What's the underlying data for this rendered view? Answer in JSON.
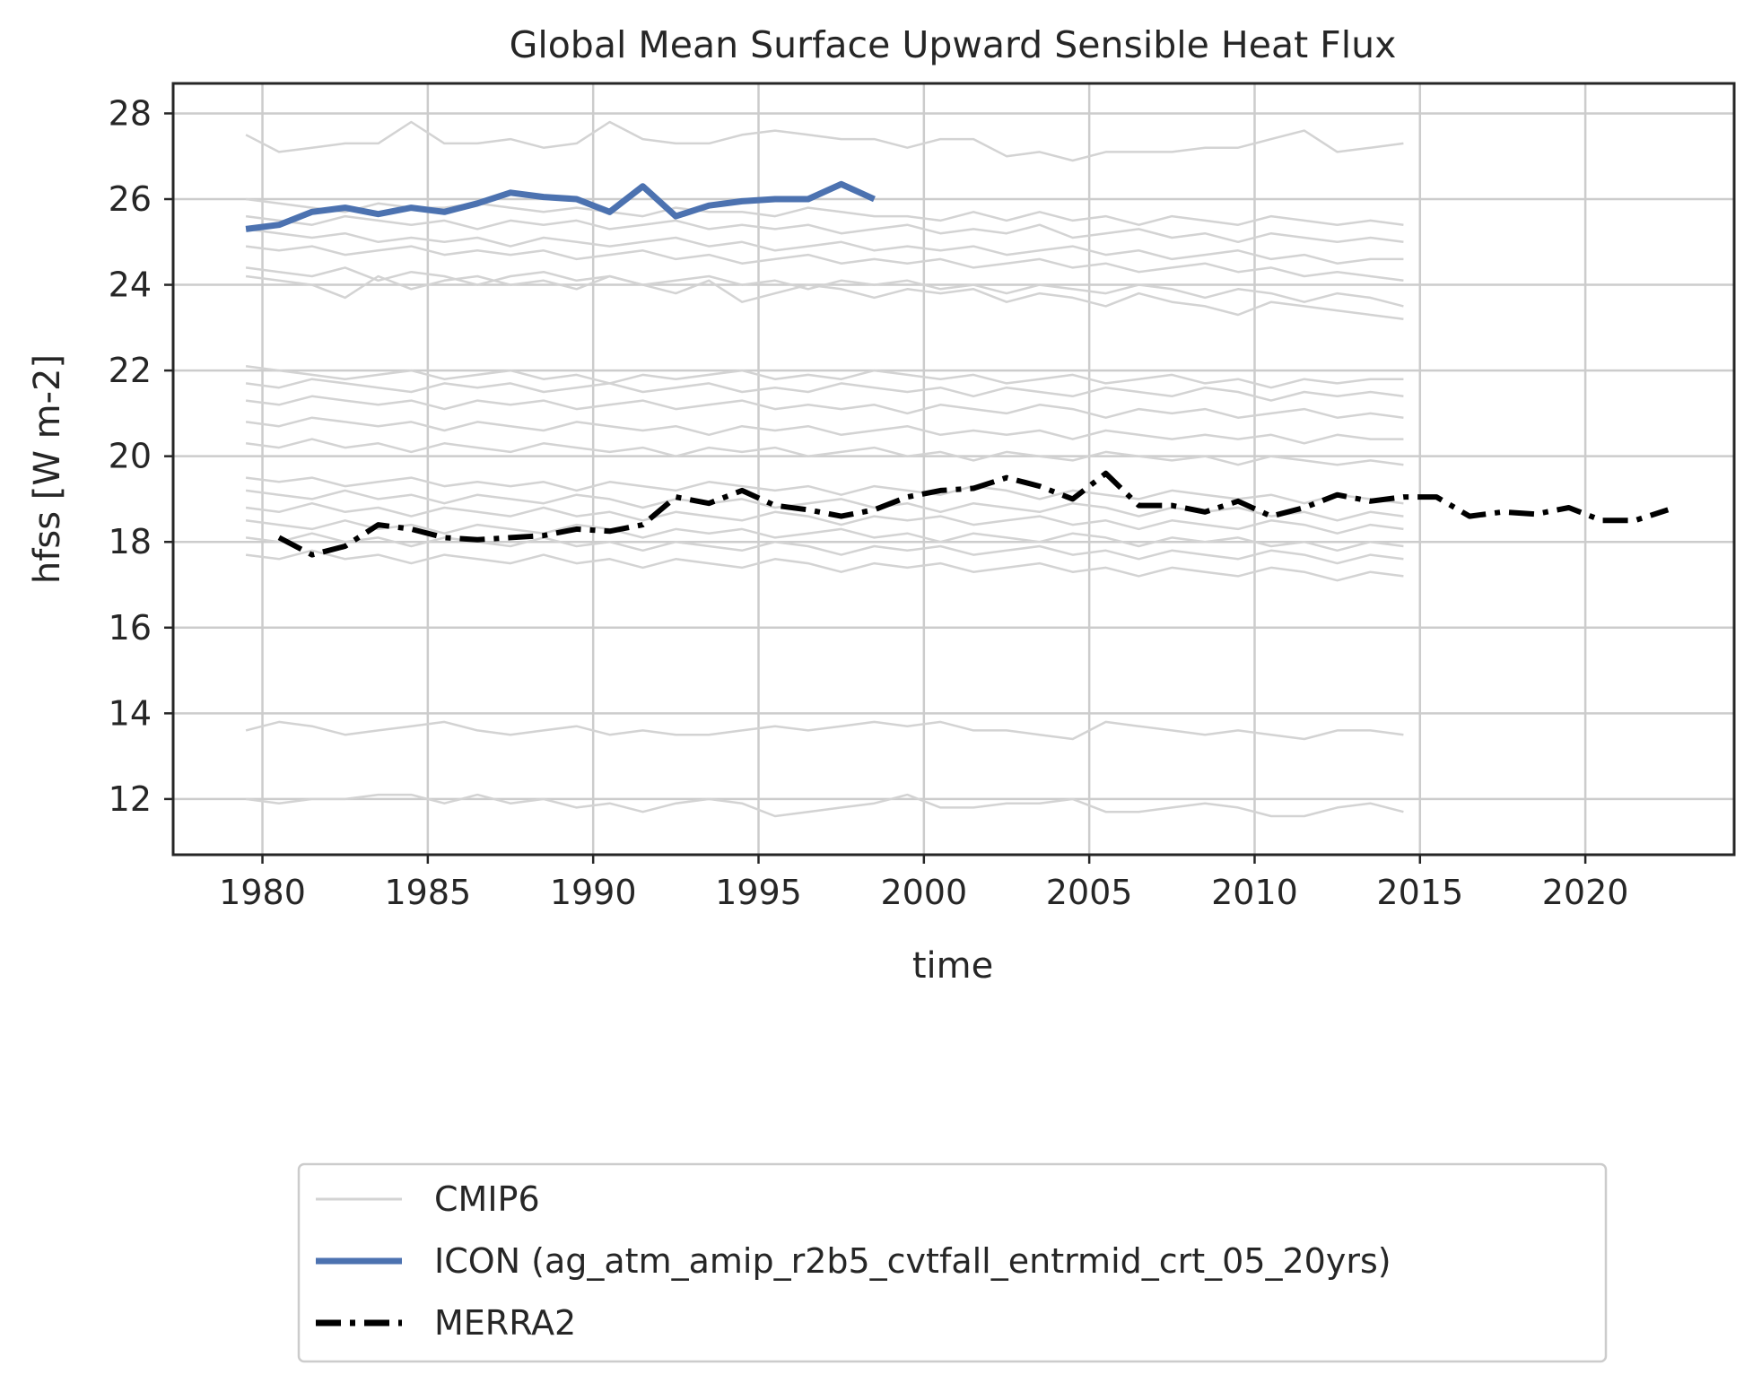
{
  "chart_data": {
    "type": "line",
    "title": "Global Mean Surface Upward Sensible Heat Flux",
    "xlabel": "time",
    "ylabel": "hfss [W m-2]",
    "xlim": [
      1977.3,
      2024.5
    ],
    "ylim": [
      10.7,
      28.7
    ],
    "xticks": [
      1980,
      1985,
      1990,
      1995,
      2000,
      2005,
      2010,
      2015,
      2020
    ],
    "yticks": [
      12,
      14,
      16,
      18,
      20,
      22,
      24,
      26,
      28
    ],
    "grid": true,
    "legend_position": "below plot",
    "series": [
      {
        "name": "CMIP6",
        "color": "#d3d3d3",
        "style": "solid",
        "x_start": 1979.5,
        "x_step": 1,
        "ensemble": [
          [
            27.5,
            27.1,
            27.2,
            27.3,
            27.3,
            27.8,
            27.3,
            27.3,
            27.4,
            27.2,
            27.3,
            27.8,
            27.4,
            27.3,
            27.3,
            27.5,
            27.6,
            27.5,
            27.4,
            27.4,
            27.2,
            27.4,
            27.4,
            27.0,
            27.1,
            26.9,
            27.1,
            27.1,
            27.1,
            27.2,
            27.2,
            27.4,
            27.6,
            27.1,
            27.2,
            27.3
          ],
          [
            26.0,
            25.9,
            25.8,
            25.7,
            25.9,
            25.8,
            25.8,
            25.9,
            25.8,
            25.7,
            25.8,
            25.7,
            25.6,
            25.8,
            25.7,
            25.7,
            25.6,
            25.8,
            25.7,
            25.6,
            25.6,
            25.5,
            25.7,
            25.5,
            25.7,
            25.5,
            25.6,
            25.4,
            25.6,
            25.5,
            25.4,
            25.6,
            25.5,
            25.4,
            25.5,
            25.4
          ],
          [
            25.6,
            25.5,
            25.4,
            25.6,
            25.5,
            25.4,
            25.5,
            25.3,
            25.5,
            25.4,
            25.5,
            25.3,
            25.4,
            25.5,
            25.3,
            25.4,
            25.3,
            25.4,
            25.2,
            25.3,
            25.4,
            25.2,
            25.3,
            25.2,
            25.4,
            25.1,
            25.2,
            25.3,
            25.1,
            25.2,
            25.0,
            25.2,
            25.1,
            25.0,
            25.1,
            25.0
          ],
          [
            25.3,
            25.2,
            25.1,
            25.2,
            25.0,
            25.1,
            25.0,
            25.1,
            24.9,
            25.1,
            25.0,
            24.9,
            25.0,
            25.1,
            24.9,
            25.0,
            24.8,
            24.9,
            25.0,
            24.8,
            24.9,
            24.8,
            24.9,
            24.7,
            24.8,
            24.9,
            24.7,
            24.8,
            24.6,
            24.7,
            24.8,
            24.6,
            24.7,
            24.5,
            24.6,
            24.6
          ],
          [
            24.9,
            24.8,
            24.9,
            24.7,
            24.8,
            24.9,
            24.7,
            24.8,
            24.7,
            24.8,
            24.6,
            24.7,
            24.8,
            24.6,
            24.7,
            24.5,
            24.6,
            24.7,
            24.5,
            24.6,
            24.5,
            24.6,
            24.4,
            24.5,
            24.6,
            24.4,
            24.5,
            24.3,
            24.4,
            24.5,
            24.3,
            24.4,
            24.2,
            24.3,
            24.2,
            24.1
          ],
          [
            24.4,
            24.3,
            24.2,
            24.4,
            24.1,
            24.3,
            24.2,
            24.0,
            24.2,
            24.3,
            24.1,
            24.2,
            24.0,
            24.1,
            24.2,
            24.0,
            24.1,
            23.9,
            24.1,
            24.0,
            24.1,
            23.9,
            24.0,
            23.8,
            24.0,
            23.9,
            23.8,
            24.0,
            23.9,
            23.7,
            23.9,
            23.8,
            23.6,
            23.8,
            23.7,
            23.5
          ],
          [
            24.2,
            24.1,
            24.0,
            23.7,
            24.2,
            23.9,
            24.1,
            24.2,
            24.0,
            24.1,
            23.9,
            24.2,
            24.0,
            23.8,
            24.1,
            23.6,
            23.8,
            24.0,
            23.9,
            23.7,
            23.9,
            23.8,
            23.9,
            23.6,
            23.8,
            23.7,
            23.5,
            23.8,
            23.6,
            23.5,
            23.3,
            23.6,
            23.5,
            23.4,
            23.3,
            23.2
          ],
          [
            22.1,
            22.0,
            21.9,
            21.8,
            21.9,
            22.0,
            21.8,
            21.9,
            22.0,
            21.8,
            21.9,
            21.7,
            21.9,
            21.8,
            21.9,
            22.0,
            21.8,
            21.9,
            21.8,
            22.0,
            21.9,
            21.8,
            21.9,
            21.7,
            21.8,
            21.9,
            21.7,
            21.8,
            21.9,
            21.7,
            21.8,
            21.6,
            21.8,
            21.7,
            21.8,
            21.8
          ],
          [
            21.7,
            21.6,
            21.8,
            21.7,
            21.6,
            21.5,
            21.7,
            21.6,
            21.7,
            21.5,
            21.6,
            21.7,
            21.5,
            21.6,
            21.7,
            21.5,
            21.6,
            21.5,
            21.7,
            21.6,
            21.5,
            21.6,
            21.4,
            21.6,
            21.5,
            21.4,
            21.6,
            21.5,
            21.4,
            21.6,
            21.5,
            21.3,
            21.5,
            21.4,
            21.5,
            21.4
          ],
          [
            21.3,
            21.2,
            21.4,
            21.3,
            21.2,
            21.3,
            21.1,
            21.3,
            21.2,
            21.3,
            21.1,
            21.2,
            21.3,
            21.1,
            21.2,
            21.3,
            21.1,
            21.2,
            21.1,
            21.2,
            21.0,
            21.2,
            21.1,
            21.0,
            21.2,
            21.1,
            20.9,
            21.1,
            21.0,
            21.1,
            20.9,
            21.0,
            21.1,
            20.9,
            21.0,
            20.9
          ],
          [
            20.8,
            20.7,
            20.9,
            20.8,
            20.7,
            20.8,
            20.6,
            20.8,
            20.7,
            20.6,
            20.8,
            20.7,
            20.6,
            20.7,
            20.5,
            20.7,
            20.6,
            20.7,
            20.5,
            20.6,
            20.7,
            20.5,
            20.6,
            20.5,
            20.6,
            20.4,
            20.6,
            20.5,
            20.4,
            20.5,
            20.4,
            20.5,
            20.3,
            20.5,
            20.4,
            20.4
          ],
          [
            20.3,
            20.2,
            20.4,
            20.2,
            20.3,
            20.1,
            20.3,
            20.2,
            20.1,
            20.3,
            20.2,
            20.1,
            20.2,
            20.0,
            20.2,
            20.1,
            20.2,
            20.0,
            20.1,
            20.2,
            20.0,
            20.1,
            19.9,
            20.1,
            20.0,
            19.9,
            20.1,
            20.0,
            19.9,
            20.0,
            19.8,
            20.0,
            19.9,
            19.8,
            19.9,
            19.8
          ],
          [
            19.5,
            19.4,
            19.5,
            19.3,
            19.4,
            19.5,
            19.3,
            19.4,
            19.3,
            19.4,
            19.2,
            19.4,
            19.3,
            19.2,
            19.4,
            19.3,
            19.2,
            19.3,
            19.1,
            19.3,
            19.2,
            19.1,
            19.3,
            19.2,
            19.0,
            19.2,
            19.1,
            19.0,
            19.2,
            19.1,
            19.0,
            19.1,
            18.9,
            19.1,
            19.0,
            18.9
          ],
          [
            19.2,
            19.1,
            19.0,
            19.2,
            19.0,
            19.1,
            18.9,
            19.1,
            19.0,
            18.9,
            19.1,
            19.0,
            18.8,
            19.0,
            18.9,
            19.0,
            18.8,
            18.9,
            19.0,
            18.8,
            18.9,
            18.7,
            18.9,
            18.8,
            18.7,
            18.9,
            18.8,
            18.6,
            18.8,
            18.7,
            18.8,
            18.6,
            18.7,
            18.5,
            18.7,
            18.6
          ],
          [
            18.8,
            18.7,
            18.9,
            18.7,
            18.8,
            18.6,
            18.8,
            18.7,
            18.6,
            18.8,
            18.6,
            18.7,
            18.5,
            18.7,
            18.6,
            18.5,
            18.7,
            18.6,
            18.4,
            18.6,
            18.5,
            18.6,
            18.4,
            18.5,
            18.6,
            18.4,
            18.5,
            18.3,
            18.5,
            18.4,
            18.3,
            18.5,
            18.4,
            18.2,
            18.4,
            18.3
          ],
          [
            18.5,
            18.4,
            18.3,
            18.5,
            18.3,
            18.4,
            18.2,
            18.4,
            18.3,
            18.2,
            18.4,
            18.3,
            18.1,
            18.3,
            18.2,
            18.3,
            18.1,
            18.2,
            18.3,
            18.1,
            18.2,
            18.0,
            18.2,
            18.1,
            18.0,
            18.2,
            18.1,
            17.9,
            18.1,
            18.0,
            18.1,
            17.9,
            18.0,
            17.8,
            18.0,
            17.9
          ],
          [
            18.1,
            18.0,
            18.2,
            18.0,
            18.1,
            17.9,
            18.1,
            18.0,
            17.9,
            18.1,
            17.9,
            18.0,
            17.8,
            18.0,
            17.9,
            17.8,
            18.0,
            17.9,
            17.7,
            17.9,
            17.8,
            17.9,
            17.7,
            17.8,
            17.9,
            17.7,
            17.8,
            17.6,
            17.8,
            17.7,
            17.6,
            17.8,
            17.7,
            17.5,
            17.7,
            17.6
          ],
          [
            17.7,
            17.6,
            17.8,
            17.6,
            17.7,
            17.5,
            17.7,
            17.6,
            17.5,
            17.7,
            17.5,
            17.6,
            17.4,
            17.6,
            17.5,
            17.4,
            17.6,
            17.5,
            17.3,
            17.5,
            17.4,
            17.5,
            17.3,
            17.4,
            17.5,
            17.3,
            17.4,
            17.2,
            17.4,
            17.3,
            17.2,
            17.4,
            17.3,
            17.1,
            17.3,
            17.2
          ],
          [
            13.6,
            13.8,
            13.7,
            13.5,
            13.6,
            13.7,
            13.8,
            13.6,
            13.5,
            13.6,
            13.7,
            13.5,
            13.6,
            13.5,
            13.5,
            13.6,
            13.7,
            13.6,
            13.7,
            13.8,
            13.7,
            13.8,
            13.6,
            13.6,
            13.5,
            13.4,
            13.8,
            13.7,
            13.6,
            13.5,
            13.6,
            13.5,
            13.4,
            13.6,
            13.6,
            13.5
          ],
          [
            12.0,
            11.9,
            12.0,
            12.0,
            12.1,
            12.1,
            11.9,
            12.1,
            11.9,
            12.0,
            11.8,
            11.9,
            11.7,
            11.9,
            12.0,
            11.9,
            11.6,
            11.7,
            11.8,
            11.9,
            12.1,
            11.8,
            11.8,
            11.9,
            11.9,
            12.0,
            11.7,
            11.7,
            11.8,
            11.9,
            11.8,
            11.6,
            11.6,
            11.8,
            11.9,
            11.7
          ]
        ]
      },
      {
        "name": "ICON (ag_atm_amip_r2b5_cvtfall_entrmid_crt_05_20yrs)",
        "color": "#4c72b0",
        "style": "solid",
        "x": [
          1979.5,
          1980.5,
          1981.5,
          1982.5,
          1983.5,
          1984.5,
          1985.5,
          1986.5,
          1987.5,
          1988.5,
          1989.5,
          1990.5,
          1991.5,
          1992.5,
          1993.5,
          1994.5,
          1995.5,
          1996.5,
          1997.5,
          1998.5
        ],
        "y": [
          25.3,
          25.4,
          25.7,
          25.8,
          25.65,
          25.8,
          25.7,
          25.9,
          26.15,
          26.05,
          26.0,
          25.7,
          26.3,
          25.6,
          25.85,
          25.95,
          26.0,
          26.0,
          26.35,
          26.0
        ]
      },
      {
        "name": "MERRA2",
        "color": "#000000",
        "style": "dashdot",
        "x": [
          1980.5,
          1981.5,
          1982.5,
          1983.5,
          1984.5,
          1985.5,
          1986.5,
          1987.5,
          1988.5,
          1989.5,
          1990.5,
          1991.5,
          1992.5,
          1993.5,
          1994.5,
          1995.5,
          1996.5,
          1997.5,
          1998.5,
          1999.5,
          2000.5,
          2001.5,
          2002.5,
          2003.5,
          2004.5,
          2005.5,
          2006.5,
          2007.5,
          2008.5,
          2009.5,
          2010.5,
          2011.5,
          2012.5,
          2013.5,
          2014.5,
          2015.5,
          2016.5,
          2017.5,
          2018.5,
          2019.5,
          2020.5,
          2021.5,
          2022.5
        ],
        "y": [
          18.1,
          17.7,
          17.9,
          18.4,
          18.3,
          18.1,
          18.05,
          18.1,
          18.15,
          18.3,
          18.25,
          18.4,
          19.05,
          18.9,
          19.2,
          18.85,
          18.75,
          18.6,
          18.75,
          19.05,
          19.2,
          19.25,
          19.5,
          19.3,
          19.0,
          19.6,
          18.85,
          18.85,
          18.7,
          18.95,
          18.6,
          18.8,
          19.1,
          18.95,
          19.05,
          19.05,
          18.6,
          18.7,
          18.65,
          18.8,
          18.5,
          18.5,
          18.75
        ]
      }
    ]
  }
}
